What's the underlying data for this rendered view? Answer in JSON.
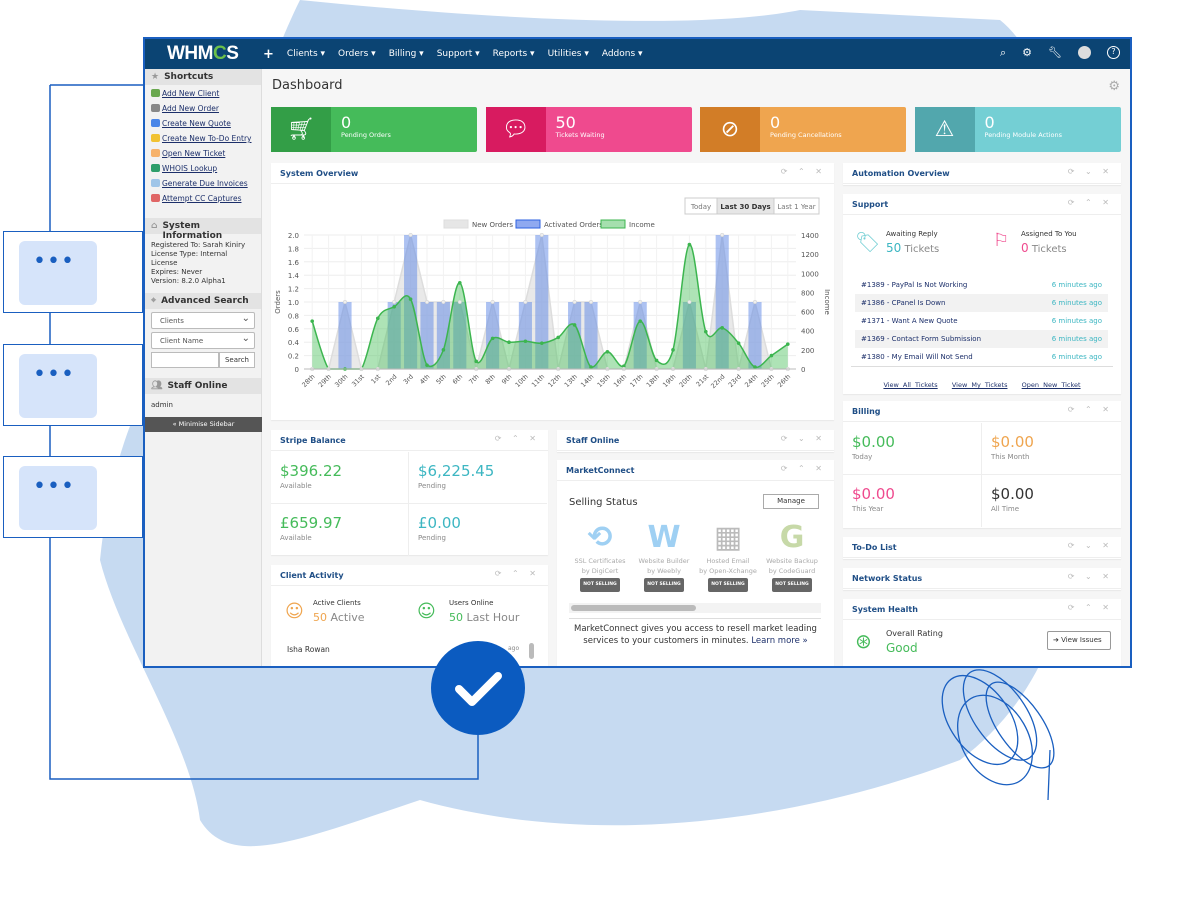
{
  "nav": {
    "logo": "WHMCS",
    "plus": "+",
    "items": [
      "Clients",
      "Orders",
      "Billing",
      "Support",
      "Reports",
      "Utilities",
      "Addons"
    ],
    "icons": [
      "search-icon",
      "cogs-icon",
      "wrench-icon",
      "avatar-icon",
      "help-icon"
    ]
  },
  "sidebar": {
    "shortcuts_title": "Shortcuts",
    "shortcuts": [
      "Add New Client",
      "Add New Order",
      "Create New Quote",
      "Create New To-Do Entry",
      "Open New Ticket",
      "WHOIS Lookup",
      "Generate Due Invoices",
      "Attempt CC Captures"
    ],
    "sysinfo_title": "System Information",
    "sysinfo": [
      "Registered To: Sarah Kiniry",
      "License Type: Internal License",
      "Expires: Never",
      "Version: 8.2.0 Alpha1"
    ],
    "search_title": "Advanced Search",
    "search_type": "Clients",
    "search_field": "Client Name",
    "search_button": "Search",
    "staff_title": "Staff Online",
    "staff": "admin",
    "minimise": "« Minimise Sidebar"
  },
  "page_title": "Dashboard",
  "stats": [
    {
      "value": "0",
      "label": "Pending Orders",
      "color": "#45bb5a",
      "dark": "#339e47",
      "icon": "cart-icon"
    },
    {
      "value": "50",
      "label": "Tickets Waiting",
      "color": "#ef4a8e",
      "dark": "#d81b60",
      "icon": "chat-bubble-icon"
    },
    {
      "value": "0",
      "label": "Pending Cancellations",
      "color": "#efa54f",
      "dark": "#d27d27",
      "icon": "ban-icon"
    },
    {
      "value": "0",
      "label": "Pending Module Actions",
      "color": "#74cfd4",
      "dark": "#52a7ad",
      "icon": "warning-icon"
    }
  ],
  "system_overview": {
    "title": "System Overview",
    "ranges": [
      "Today",
      "Last 30 Days",
      "Last 1 Year"
    ],
    "active_range": "Last 30 Days"
  },
  "chart_data": {
    "type": "bar",
    "categories": [
      "28th",
      "29th",
      "30th",
      "31st",
      "1st",
      "2nd",
      "3rd",
      "4th",
      "5th",
      "6th",
      "7th",
      "8th",
      "9th",
      "10th",
      "11th",
      "12th",
      "13th",
      "14th",
      "15th",
      "16th",
      "17th",
      "18th",
      "19th",
      "20th",
      "21st",
      "22nd",
      "23rd",
      "24th",
      "25th",
      "26th"
    ],
    "series": [
      {
        "name": "New Orders",
        "type": "area",
        "axis": "left",
        "color": "#dcdcdc",
        "values": [
          0,
          0,
          1,
          0,
          0,
          1,
          2,
          1,
          1,
          1,
          0,
          1,
          0,
          1,
          2,
          0,
          1,
          1,
          0,
          0,
          1,
          0,
          0,
          1,
          0,
          2,
          0,
          1,
          0,
          0
        ]
      },
      {
        "name": "Activated Orders",
        "type": "bar",
        "axis": "left",
        "color": "#5b86e5",
        "values": [
          0,
          0,
          1,
          0,
          0,
          1,
          2,
          1,
          1,
          1,
          0,
          1,
          0,
          1,
          2,
          0,
          1,
          1,
          0,
          0,
          1,
          0,
          0,
          1,
          0,
          2,
          0,
          1,
          0,
          0
        ]
      },
      {
        "name": "Income",
        "type": "area",
        "axis": "right",
        "color": "#4cc05e",
        "values": [
          500,
          0,
          0,
          0,
          530,
          650,
          730,
          40,
          200,
          900,
          80,
          320,
          280,
          290,
          270,
          330,
          460,
          20,
          180,
          30,
          500,
          90,
          200,
          1300,
          390,
          430,
          270,
          20,
          140,
          260
        ]
      }
    ],
    "ylabel": "Orders",
    "y2label": "Income",
    "ylim": [
      0,
      2
    ],
    "yticks": [
      "0",
      "0.2",
      "0.4",
      "0.6",
      "0.8",
      "1.0",
      "1.2",
      "1.4",
      "1.6",
      "1.8",
      "2.0"
    ],
    "y2lim": [
      0,
      1400
    ],
    "y2ticks": [
      "0",
      "200",
      "400",
      "600",
      "800",
      "1000",
      "1200",
      "1400"
    ],
    "grid": true,
    "legend": "top"
  },
  "widgets": {
    "automation": "Automation Overview",
    "support": {
      "title": "Support",
      "awaiting_label": "Awaiting Reply",
      "awaiting_count": "50",
      "assigned_label": "Assigned To You",
      "assigned_count": "0",
      "tickets_word": "Tickets",
      "tickets": [
        {
          "t": "#1389 - PayPal Is Not Working",
          "a": "6 minutes ago"
        },
        {
          "t": "#1386 - CPanel Is Down",
          "a": "6 minutes ago"
        },
        {
          "t": "#1371 - Want A New Quote",
          "a": "6 minutes ago"
        },
        {
          "t": "#1369 - Contact Form Submission",
          "a": "6 minutes ago"
        },
        {
          "t": "#1380 - My Email Will Not Send",
          "a": "6 minutes ago"
        }
      ],
      "links": [
        "View All Tickets",
        "View My Tickets",
        "Open New Ticket"
      ]
    },
    "billing": {
      "title": "Billing",
      "cells": [
        {
          "v": "$0.00",
          "l": "Today",
          "c": "#45bb5a"
        },
        {
          "v": "$0.00",
          "l": "This Month",
          "c": "#efa54f"
        },
        {
          "v": "$0.00",
          "l": "This Year",
          "c": "#ef4a8e"
        },
        {
          "v": "$0.00",
          "l": "All Time",
          "c": "#333333"
        }
      ]
    },
    "todo": "To-Do List",
    "network": "Network Status",
    "health": {
      "title": "System Health",
      "label": "Overall Rating",
      "value": "Good",
      "button": "View Issues"
    },
    "stripe": {
      "title": "Stripe Balance",
      "cells": [
        {
          "v": "$396.22",
          "l": "Available",
          "c": "#45bb5a"
        },
        {
          "v": "$6,225.45",
          "l": "Pending",
          "c": "#3cb6c2"
        },
        {
          "v": "£659.97",
          "l": "Available",
          "c": "#45bb5a"
        },
        {
          "v": "£0.00",
          "l": "Pending",
          "c": "#3cb6c2"
        }
      ]
    },
    "client_activity": {
      "title": "Client Activity",
      "active_label": "Active Clients",
      "active_count": "50",
      "active_word": "Active",
      "online_label": "Users Online",
      "online_count": "50",
      "online_word": "Last Hour",
      "row_name": "Isha Rowan",
      "row_time": "ago"
    },
    "staff_online": "Staff Online",
    "marketconnect": {
      "title": "MarketConnect",
      "heading": "Selling Status",
      "manage": "Manage",
      "services": [
        {
          "n": "SSL Certificates",
          "b": "by DigiCert",
          "s": "NOT SELLING"
        },
        {
          "n": "Website Builder",
          "b": "by Weebly",
          "s": "NOT SELLING"
        },
        {
          "n": "Hosted Email",
          "b": "by Open-Xchange",
          "s": "NOT SELLING"
        },
        {
          "n": "Website Backup",
          "b": "by CodeGuard",
          "s": "NOT SELLING"
        }
      ],
      "blurb": "MarketConnect gives you access to resell market leading services to your customers in minutes.",
      "learn_more": "Learn more »"
    }
  }
}
